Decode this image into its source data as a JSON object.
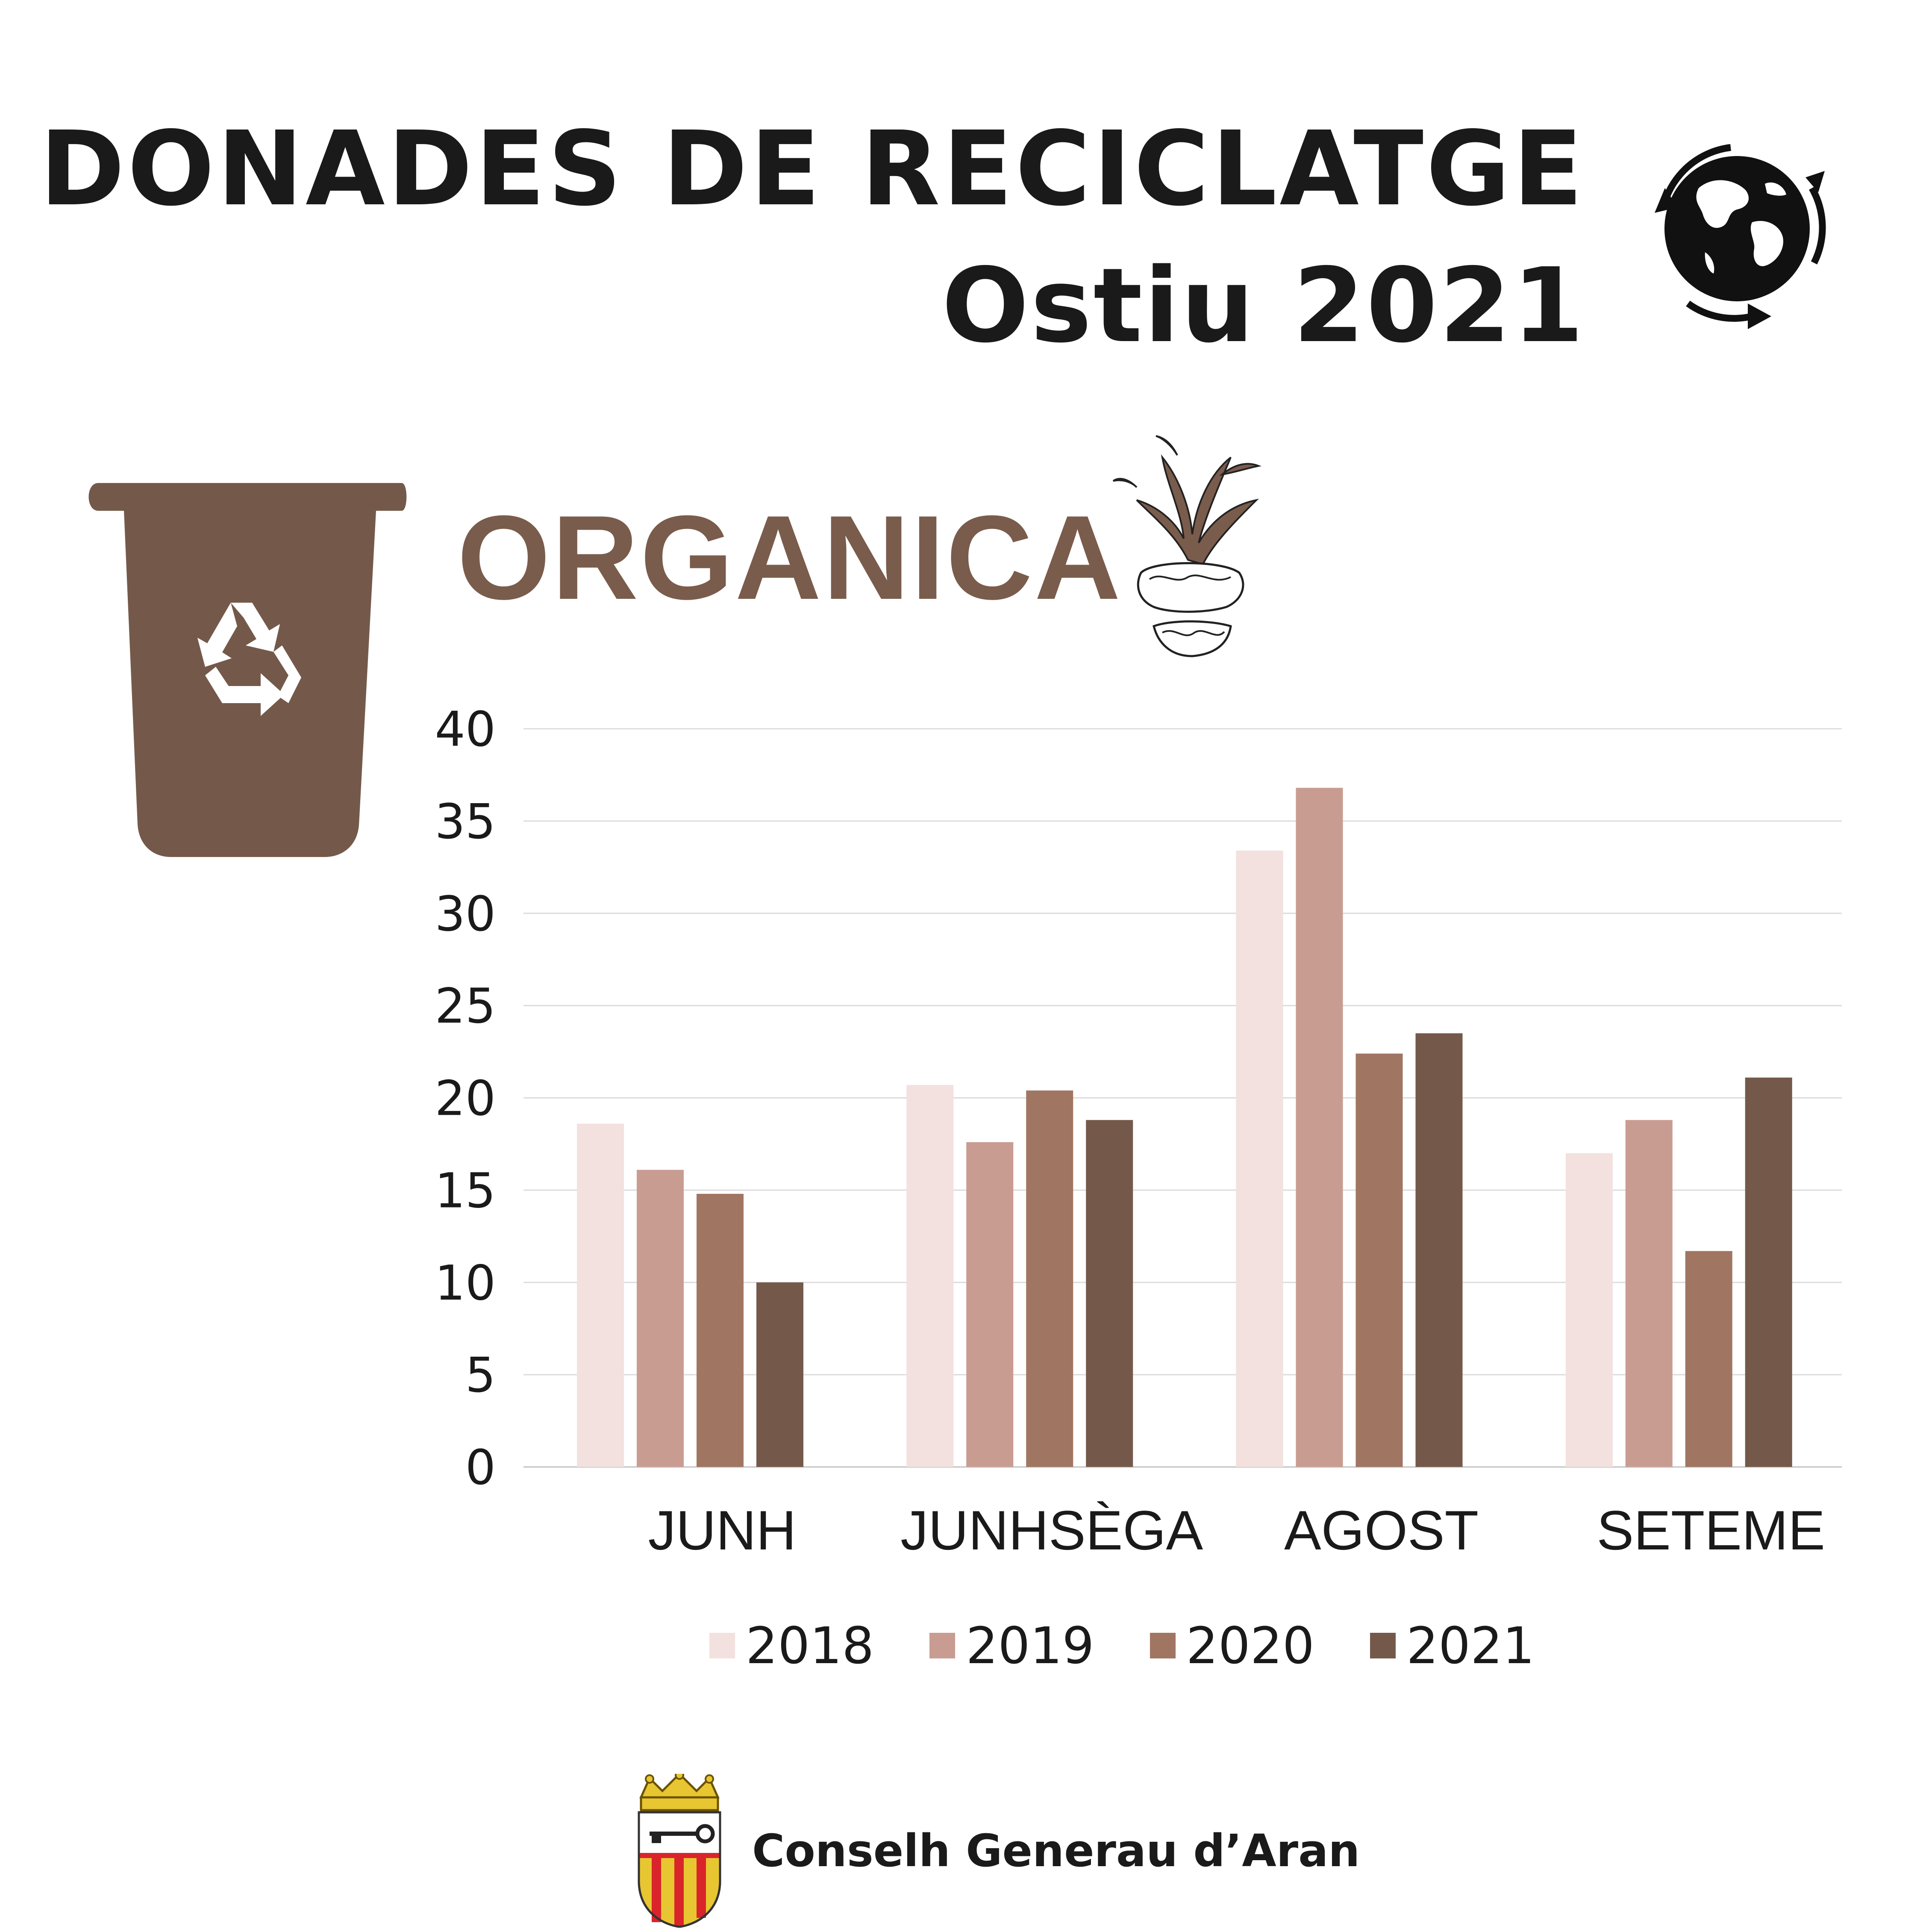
{
  "header": {
    "title": "DONADES DE RECICLATGE",
    "subtitle": "Ostiu 2021",
    "globe_icon": "recycle-globe-icon"
  },
  "category": {
    "label": "ORGANICA",
    "bin_icon": "organic-bin-icon",
    "recycle_icon": "recycle-symbol-icon",
    "pineapple_icon": "pineapple-icon",
    "color": "#74594a"
  },
  "chart_data": {
    "type": "bar",
    "categories": [
      "JUNH",
      "JUNHSÈGA",
      "AGOST",
      "SETEME"
    ],
    "series": [
      {
        "name": "2018",
        "color": "#f2e1de",
        "values": [
          18.6,
          20.7,
          33.4,
          17.0
        ]
      },
      {
        "name": "2019",
        "color": "#c99c92",
        "values": [
          16.1,
          17.6,
          36.8,
          18.8
        ]
      },
      {
        "name": "2020",
        "color": "#a07662",
        "values": [
          14.8,
          20.4,
          22.4,
          11.7
        ]
      },
      {
        "name": "2021",
        "color": "#74594a",
        "values": [
          10.0,
          18.8,
          23.5,
          21.1
        ]
      }
    ],
    "yticks": [
      "0",
      "5",
      "10",
      "15",
      "20",
      "25",
      "30",
      "35",
      "40"
    ],
    "ylim": [
      0,
      40
    ],
    "grid": true,
    "legend": "bottom"
  },
  "footer": {
    "organization": "Conselh Generau d’Aran",
    "crest_icon": "aran-coat-of-arms-icon"
  }
}
